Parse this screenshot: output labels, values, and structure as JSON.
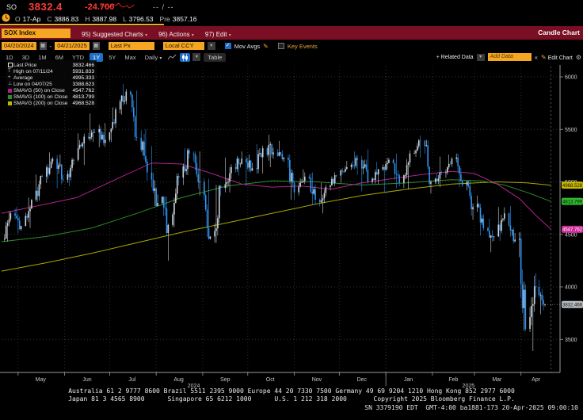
{
  "header": {
    "ticker": "SO",
    "last_price": "3832.4",
    "change": "-24.700",
    "range_placeholder": "-- / --",
    "sparkline": [
      5,
      7,
      4,
      6,
      3,
      8,
      6,
      9,
      5,
      4,
      6,
      3,
      5,
      7
    ],
    "quote_fields": [
      {
        "label": "O",
        "value": "17-Ap"
      },
      {
        "label": "C",
        "value": "3886.83"
      },
      {
        "label": "H",
        "value": "3887.98"
      },
      {
        "label": "L",
        "value": "3796.53"
      },
      {
        "label": "Pre",
        "value": "3857.16"
      }
    ]
  },
  "menubar": {
    "security": "SOX Index",
    "items": [
      "95) Suggested Charts",
      "96) Actions",
      "97) Edit"
    ],
    "chart_type_label": "Candle Chart"
  },
  "toolbar": {
    "date_from": "04/20/2024",
    "date_to": "04/21/2025",
    "price_field": "Last Px",
    "currency": "Local CCY",
    "mov_avgs_label": "Mov Avgs",
    "key_events_label": "Key Events",
    "periods": [
      "1D",
      "3D",
      "1M",
      "6M",
      "YTD",
      "1Y",
      "5Y",
      "Max"
    ],
    "active_period": "1Y",
    "frequency": "Daily",
    "table_label": "Table",
    "related_data_label": "+ Related Data",
    "add_data_placeholder": "Add Data",
    "collapse_label": "«",
    "edit_chart_label": "Edit Chart"
  },
  "legend": {
    "rows": [
      {
        "marker": "square-hollow",
        "color": "#e8e8e8",
        "label": "Last Price",
        "value": "3832.466"
      },
      {
        "marker": "glyph-T",
        "color": "#c9c9c9",
        "label": "High on 07/11/24",
        "value": "5931.833"
      },
      {
        "marker": "glyph-plus",
        "color": "#c9c9c9",
        "label": "Average",
        "value": "4995.333"
      },
      {
        "marker": "glyph-low",
        "color": "#c9c9c9",
        "label": "Low on 04/07/25",
        "value": "3388.623"
      },
      {
        "marker": "square",
        "color": "#b01e8c",
        "label": "SMAVG (50)  on Close",
        "value": "4547.762"
      },
      {
        "marker": "square",
        "color": "#2d8c2d",
        "label": "SMAVG (100) on Close",
        "value": "4813.799"
      },
      {
        "marker": "square",
        "color": "#b8b800",
        "label": "SMAVG (200) on Close",
        "value": "4968.528"
      }
    ]
  },
  "chart_data": {
    "type": "candlestick",
    "title": "SOX Index — 1Y Daily Candle Chart",
    "x_range": [
      "2024-04-20",
      "2025-04-21"
    ],
    "ylim": [
      3350,
      6100
    ],
    "y_ticks": [
      3500,
      4000,
      4500,
      5000,
      5500,
      6000
    ],
    "grid": "dotted",
    "month_boundaries_day": [
      11,
      42,
      72,
      103,
      134,
      164,
      195,
      225,
      256,
      287,
      315,
      346
    ],
    "month_labels": [
      {
        "label": "May",
        "day": 26
      },
      {
        "label": "Jun",
        "day": 57
      },
      {
        "label": "Jul",
        "day": 87
      },
      {
        "label": "Aug",
        "day": 118
      },
      {
        "label": "Sep",
        "day": 149
      },
      {
        "label": "Oct",
        "day": 179
      },
      {
        "label": "Nov",
        "day": 210
      },
      {
        "label": "Dec",
        "day": 240
      },
      {
        "label": "Jan",
        "day": 271
      },
      {
        "label": "Feb",
        "day": 301
      },
      {
        "label": "Mar",
        "day": 330
      },
      {
        "label": "Apr",
        "day": 356
      }
    ],
    "year_labels": [
      {
        "label": "2024",
        "day": 128
      },
      {
        "label": "2025",
        "day": 311
      }
    ],
    "last_price": 3832.466,
    "high": {
      "date": "07/11/24",
      "value": 5931.833
    },
    "low": {
      "date": "04/07/25",
      "value": 3388.623
    },
    "average": 4995.333,
    "axis_badges": [
      {
        "value": "4968.528",
        "num": 4968.528,
        "bg": "#c8b900",
        "fg": "#101000"
      },
      {
        "value": "4813.799",
        "num": 4813.799,
        "bg": "#2fba2f",
        "fg": "#041004"
      },
      {
        "value": "4547.762",
        "num": 4547.762,
        "bg": "#cc2a96",
        "fg": "#fff"
      },
      {
        "value": "3832.466",
        "num": 3832.466,
        "bg": "#b7bcc0",
        "fg": "#111"
      }
    ],
    "up_color": "#cfd6dd",
    "down_color": "#2f96f5",
    "weekly_candles": [
      [
        6,
        4450,
        4720,
        4430,
        4700
      ],
      [
        13,
        4700,
        4760,
        4510,
        4580
      ],
      [
        20,
        4580,
        4850,
        4560,
        4830
      ],
      [
        27,
        4830,
        5070,
        4810,
        5050
      ],
      [
        34,
        5050,
        5280,
        4990,
        5220
      ],
      [
        41,
        5220,
        5260,
        4940,
        5020
      ],
      [
        48,
        5020,
        5230,
        4960,
        5210
      ],
      [
        55,
        5210,
        5460,
        5160,
        5430
      ],
      [
        62,
        5430,
        5650,
        5380,
        5470
      ],
      [
        69,
        5470,
        5560,
        5330,
        5400
      ],
      [
        76,
        5400,
        5710,
        5380,
        5690
      ],
      [
        83,
        5690,
        5931.8,
        5640,
        5860
      ],
      [
        90,
        5860,
        5870,
        5390,
        5420
      ],
      [
        97,
        5420,
        5500,
        5010,
        5090
      ],
      [
        104,
        5090,
        5340,
        4770,
        4800
      ],
      [
        111,
        4800,
        4860,
        4250,
        4590
      ],
      [
        118,
        4590,
        5080,
        4570,
        5040
      ],
      [
        125,
        5040,
        5320,
        4970,
        5270
      ],
      [
        132,
        5270,
        5290,
        4870,
        5000
      ],
      [
        139,
        5000,
        5030,
        4450,
        4480
      ],
      [
        146,
        4480,
        4970,
        4420,
        4940
      ],
      [
        153,
        4940,
        5230,
        4900,
        5140
      ],
      [
        160,
        5140,
        5290,
        5060,
        5220
      ],
      [
        167,
        5220,
        5260,
        4960,
        5130
      ],
      [
        174,
        5130,
        5360,
        5080,
        5320
      ],
      [
        181,
        5320,
        5450,
        5140,
        5280
      ],
      [
        188,
        5280,
        5390,
        5190,
        5230
      ],
      [
        195,
        5230,
        5260,
        4830,
        4900
      ],
      [
        202,
        4900,
        5120,
        4870,
        5050
      ],
      [
        209,
        5050,
        5090,
        4780,
        4830
      ],
      [
        216,
        4830,
        4990,
        4700,
        4950
      ],
      [
        223,
        4950,
        5090,
        4920,
        5060
      ],
      [
        230,
        5060,
        5200,
        4990,
        5140
      ],
      [
        237,
        5140,
        5290,
        5070,
        5210
      ],
      [
        244,
        5210,
        5310,
        4910,
        5000
      ],
      [
        251,
        5000,
        5190,
        4980,
        5120
      ],
      [
        258,
        5120,
        5230,
        4900,
        5210
      ],
      [
        265,
        5210,
        5270,
        4940,
        4990
      ],
      [
        272,
        4990,
        5300,
        4930,
        5270
      ],
      [
        279,
        5270,
        5440,
        5230,
        5390
      ],
      [
        286,
        5390,
        5400,
        4890,
        5000
      ],
      [
        293,
        5000,
        5240,
        4950,
        5090
      ],
      [
        300,
        5090,
        5260,
        5040,
        5220
      ],
      [
        307,
        5220,
        5270,
        4950,
        4970
      ],
      [
        314,
        4970,
        5010,
        4640,
        4760
      ],
      [
        321,
        4760,
        4870,
        4490,
        4560
      ],
      [
        328,
        4560,
        4650,
        4330,
        4480
      ],
      [
        335,
        4480,
        4760,
        4440,
        4700
      ],
      [
        342,
        4700,
        4770,
        4410,
        4450
      ],
      [
        349,
        4450,
        4520,
        3580,
        3600
      ],
      [
        356,
        3600,
        4130,
        3388.6,
        4000
      ],
      [
        362,
        4000,
        4070,
        3740,
        3832.5
      ]
    ],
    "sma50": [
      [
        0,
        4700
      ],
      [
        20,
        4760
      ],
      [
        50,
        4850
      ],
      [
        80,
        5050
      ],
      [
        100,
        5180
      ],
      [
        120,
        5170
      ],
      [
        140,
        5080
      ],
      [
        160,
        4980
      ],
      [
        180,
        4950
      ],
      [
        200,
        4960
      ],
      [
        220,
        4930
      ],
      [
        240,
        4990
      ],
      [
        260,
        5030
      ],
      [
        280,
        5070
      ],
      [
        300,
        5100
      ],
      [
        315,
        5080
      ],
      [
        330,
        4980
      ],
      [
        345,
        4840
      ],
      [
        356,
        4680
      ],
      [
        366,
        4547.76
      ]
    ],
    "sma100": [
      [
        0,
        4430
      ],
      [
        30,
        4480
      ],
      [
        60,
        4560
      ],
      [
        90,
        4700
      ],
      [
        120,
        4850
      ],
      [
        150,
        4960
      ],
      [
        180,
        5010
      ],
      [
        210,
        5000
      ],
      [
        240,
        4970
      ],
      [
        270,
        4990
      ],
      [
        300,
        5020
      ],
      [
        320,
        5010
      ],
      [
        335,
        4970
      ],
      [
        350,
        4900
      ],
      [
        366,
        4813.8
      ]
    ],
    "sma200": [
      [
        0,
        4150
      ],
      [
        30,
        4230
      ],
      [
        60,
        4320
      ],
      [
        90,
        4420
      ],
      [
        120,
        4520
      ],
      [
        150,
        4610
      ],
      [
        180,
        4700
      ],
      [
        210,
        4790
      ],
      [
        240,
        4870
      ],
      [
        270,
        4930
      ],
      [
        300,
        4980
      ],
      [
        330,
        5000
      ],
      [
        350,
        4990
      ],
      [
        366,
        4968.53
      ]
    ]
  },
  "footer": {
    "line1": "Australia 61 2 9777 8600 Brazil 5511 2395 9000 Europe 44 20 7330 7500 Germany 49 69 9204 1210 Hong Kong 852 2977 6000",
    "line2": "Japan 81 3 4565 8900      Singapore 65 6212 1000      U.S. 1 212 318 2000       Copyright 2025 Bloomberg Finance L.P.",
    "line3": "SN 3379190 EDT  GMT-4:00 ba1881-173 20-Apr-2025 09:00:10"
  }
}
